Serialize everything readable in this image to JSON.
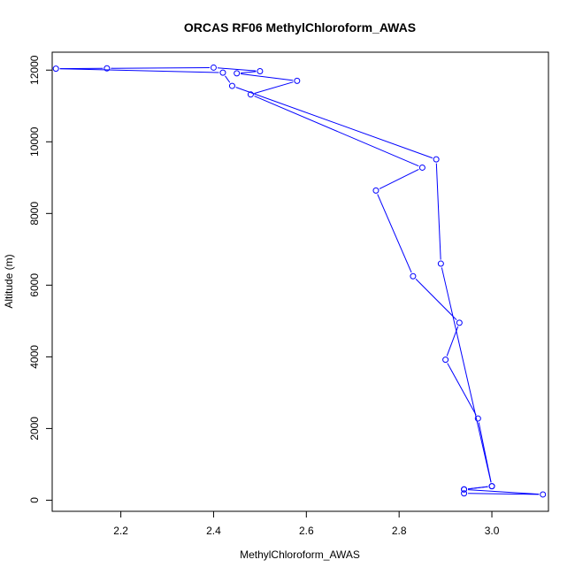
{
  "chart_data": {
    "type": "line",
    "title": "ORCAS RF06 MethylChloroform_AWAS",
    "xlabel": "MethylChloroform_AWAS",
    "ylabel": "Altitude (m)",
    "xlim": [
      2.052,
      3.122
    ],
    "ylim": [
      -310,
      12500
    ],
    "xticks": [
      2.2,
      2.4,
      2.6,
      2.8,
      3.0
    ],
    "xtick_labels": [
      "2.2",
      "2.4",
      "2.6",
      "2.8",
      "3.0"
    ],
    "yticks": [
      0,
      2000,
      4000,
      6000,
      8000,
      10000,
      12000
    ],
    "ytick_labels": [
      "0",
      "2000",
      "4000",
      "6000",
      "8000",
      "10000",
      "12000"
    ],
    "grid": false,
    "legend": "none",
    "series_color": "#0000ff",
    "marker": "open-circle",
    "points": [
      {
        "x": 2.94,
        "y": 190
      },
      {
        "x": 3.11,
        "y": 160
      },
      {
        "x": 2.94,
        "y": 300
      },
      {
        "x": 3.0,
        "y": 390
      },
      {
        "x": 2.89,
        "y": 6600
      },
      {
        "x": 2.88,
        "y": 9510
      },
      {
        "x": 2.44,
        "y": 11560
      },
      {
        "x": 2.42,
        "y": 11930
      },
      {
        "x": 2.06,
        "y": 12040
      },
      {
        "x": 2.17,
        "y": 12050
      },
      {
        "x": 2.4,
        "y": 12070
      },
      {
        "x": 2.5,
        "y": 11970
      },
      {
        "x": 2.45,
        "y": 11910
      },
      {
        "x": 2.58,
        "y": 11700
      },
      {
        "x": 2.48,
        "y": 11320
      },
      {
        "x": 2.85,
        "y": 9280
      },
      {
        "x": 2.75,
        "y": 8640
      },
      {
        "x": 2.83,
        "y": 6250
      },
      {
        "x": 2.93,
        "y": 4950
      },
      {
        "x": 2.9,
        "y": 3920
      },
      {
        "x": 2.97,
        "y": 2280
      },
      {
        "x": 3.0,
        "y": 390
      },
      {
        "x": 2.94,
        "y": 300
      }
    ]
  }
}
